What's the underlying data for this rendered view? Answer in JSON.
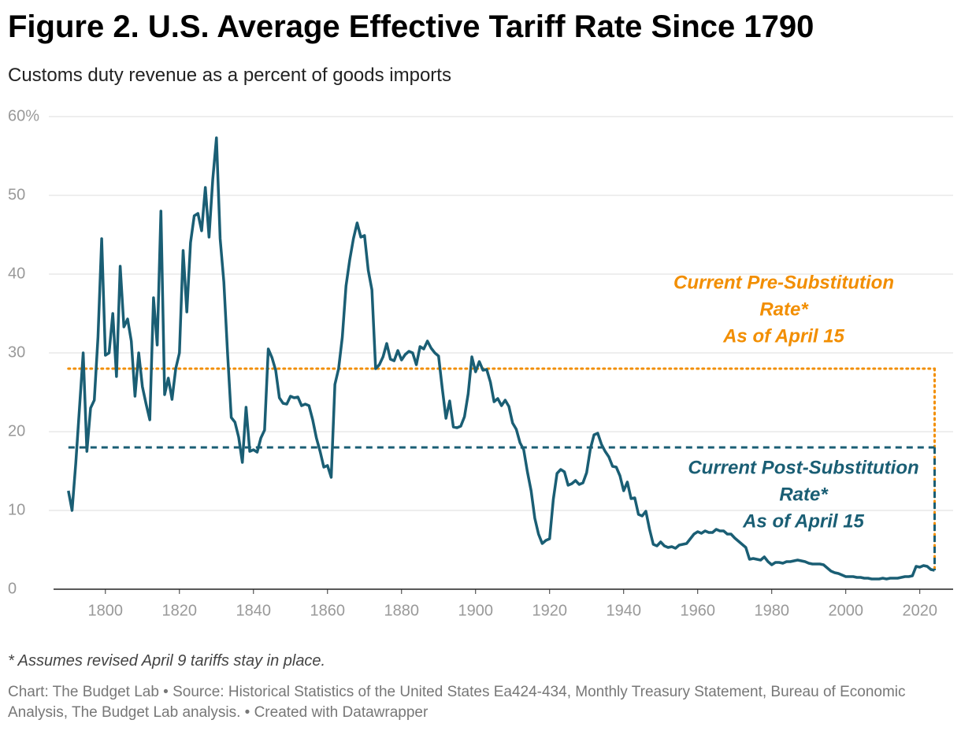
{
  "chart_data": {
    "type": "line",
    "title": "Figure 2. U.S. Average Effective Tariff Rate Since 1790",
    "subtitle": "Customs duty revenue as a percent of goods imports",
    "note": "* Assumes revised April 9 tariffs stay in place.",
    "source": "Chart: The Budget Lab • Source: Historical Statistics of the United States Ea424-434, Monthly Treasury Statement, Bureau of Economic Analysis, The Budget Lab analysis. • Created with Datawrapper",
    "color": "#1a5e74",
    "grid": true,
    "xlim": [
      1786,
      2029
    ],
    "ylim": [
      0,
      60
    ],
    "xticks": [
      1800,
      1820,
      1840,
      1860,
      1880,
      1900,
      1920,
      1940,
      1960,
      1980,
      2000,
      2020
    ],
    "yticks": [
      0,
      10,
      20,
      30,
      40,
      50,
      {
        "value": 60,
        "label": "60%"
      }
    ],
    "x": [
      1790,
      1791,
      1792,
      1793,
      1794,
      1795,
      1796,
      1797,
      1798,
      1799,
      1800,
      1801,
      1802,
      1803,
      1804,
      1805,
      1806,
      1807,
      1808,
      1809,
      1810,
      1811,
      1812,
      1813,
      1814,
      1815,
      1816,
      1817,
      1818,
      1819,
      1820,
      1821,
      1822,
      1823,
      1824,
      1825,
      1826,
      1827,
      1828,
      1829,
      1830,
      1831,
      1832,
      1833,
      1834,
      1835,
      1836,
      1837,
      1838,
      1839,
      1840,
      1841,
      1842,
      1843,
      1844,
      1845,
      1846,
      1847,
      1848,
      1849,
      1850,
      1851,
      1852,
      1853,
      1854,
      1855,
      1856,
      1857,
      1858,
      1859,
      1860,
      1861,
      1862,
      1863,
      1864,
      1865,
      1866,
      1867,
      1868,
      1869,
      1870,
      1871,
      1872,
      1873,
      1874,
      1875,
      1876,
      1877,
      1878,
      1879,
      1880,
      1881,
      1882,
      1883,
      1884,
      1885,
      1886,
      1887,
      1888,
      1889,
      1890,
      1891,
      1892,
      1893,
      1894,
      1895,
      1896,
      1897,
      1898,
      1899,
      1900,
      1901,
      1902,
      1903,
      1904,
      1905,
      1906,
      1907,
      1908,
      1909,
      1910,
      1911,
      1912,
      1913,
      1914,
      1915,
      1916,
      1917,
      1918,
      1919,
      1920,
      1921,
      1922,
      1923,
      1924,
      1925,
      1926,
      1927,
      1928,
      1929,
      1930,
      1931,
      1932,
      1933,
      1934,
      1935,
      1936,
      1937,
      1938,
      1939,
      1940,
      1941,
      1942,
      1943,
      1944,
      1945,
      1946,
      1947,
      1948,
      1949,
      1950,
      1951,
      1952,
      1953,
      1954,
      1955,
      1956,
      1957,
      1958,
      1959,
      1960,
      1961,
      1962,
      1963,
      1964,
      1965,
      1966,
      1967,
      1968,
      1969,
      1970,
      1971,
      1972,
      1973,
      1974,
      1975,
      1976,
      1977,
      1978,
      1979,
      1980,
      1981,
      1982,
      1983,
      1984,
      1985,
      1986,
      1987,
      1988,
      1989,
      1990,
      1991,
      1992,
      1993,
      1994,
      1995,
      1996,
      1997,
      1998,
      1999,
      2000,
      2001,
      2002,
      2003,
      2004,
      2005,
      2006,
      2007,
      2008,
      2009,
      2010,
      2011,
      2012,
      2013,
      2014,
      2015,
      2016,
      2017,
      2018,
      2019,
      2020,
      2021,
      2022,
      2023,
      2024
    ],
    "values": [
      12.5,
      10,
      16,
      23,
      30,
      17.5,
      23,
      24,
      32,
      44.5,
      29.7,
      30,
      35,
      27,
      41,
      33.3,
      34.3,
      31.5,
      24.5,
      30,
      25.7,
      23.5,
      21.5,
      37,
      31,
      48,
      24.7,
      26.8,
      24.1,
      28,
      30,
      43,
      35.2,
      44,
      47.4,
      47.7,
      45.5,
      51,
      44.7,
      52,
      57.3,
      44.5,
      39,
      30,
      21.8,
      21.2,
      19.3,
      16.1,
      23.1,
      17.5,
      17.7,
      17.4,
      19.2,
      20.2,
      30.5,
      29.4,
      27.8,
      24.3,
      23.6,
      23.5,
      24.5,
      24.3,
      24.4,
      23.3,
      23.5,
      23.3,
      21.5,
      19.2,
      17.5,
      15.5,
      15.7,
      14.2,
      26,
      28,
      32,
      38.5,
      41.8,
      44.5,
      46.5,
      44.7,
      44.9,
      40.5,
      38,
      28,
      28.5,
      29.5,
      31.2,
      29.2,
      29,
      30.3,
      29.1,
      29.8,
      30.2,
      30,
      28.5,
      30.8,
      30.5,
      31.5,
      30.6,
      30,
      29.6,
      25.5,
      21.7,
      23.9,
      20.6,
      20.5,
      20.7,
      21.9,
      24.8,
      29.5,
      27.6,
      28.9,
      27.8,
      27.9,
      26.3,
      23.8,
      24.2,
      23.3,
      24,
      23.2,
      21.1,
      20.3,
      18.6,
      17.7,
      14.9,
      12.5,
      9,
      7,
      5.8,
      6.2,
      6.4,
      11.4,
      14.7,
      15.2,
      14.9,
      13.2,
      13.4,
      13.8,
      13.3,
      13.5,
      14.8,
      17.8,
      19.6,
      19.8,
      18.4,
      17.5,
      16.8,
      15.6,
      15.5,
      14.4,
      12.5,
      13.6,
      11.5,
      11.6,
      9.5,
      9.3,
      9.9,
      7.6,
      5.7,
      5.5,
      6,
      5.5,
      5.3,
      5.4,
      5.2,
      5.6,
      5.7,
      5.8,
      6.4,
      7,
      7.3,
      7.1,
      7.4,
      7.2,
      7.2,
      7.6,
      7.4,
      7.4,
      7,
      7,
      6.5,
      6.1,
      5.7,
      5.3,
      3.8,
      3.9,
      3.8,
      3.7,
      4.1,
      3.5,
      3.1,
      3.4,
      3.4,
      3.3,
      3.5,
      3.5,
      3.6,
      3.7,
      3.6,
      3.5,
      3.3,
      3.2,
      3.2,
      3.2,
      3.1,
      2.7,
      2.3,
      2.1,
      2,
      1.8,
      1.6,
      1.6,
      1.6,
      1.5,
      1.5,
      1.4,
      1.4,
      1.3,
      1.3,
      1.3,
      1.4,
      1.3,
      1.4,
      1.4,
      1.4,
      1.5,
      1.6,
      1.6,
      1.7,
      2.9,
      2.8,
      3,
      2.9,
      2.5,
      2.4
    ],
    "reference_lines": [
      {
        "value": 28,
        "color": "#f28e00",
        "style": "dotted",
        "lines": [
          "Current Pre-Substitution",
          "Rate*",
          "As of April 15"
        ]
      },
      {
        "value": 18,
        "color": "#1a5e74",
        "style": "dashed",
        "lines": [
          "Current Post-Substitution",
          "Rate*",
          "As of April 15"
        ]
      }
    ]
  }
}
